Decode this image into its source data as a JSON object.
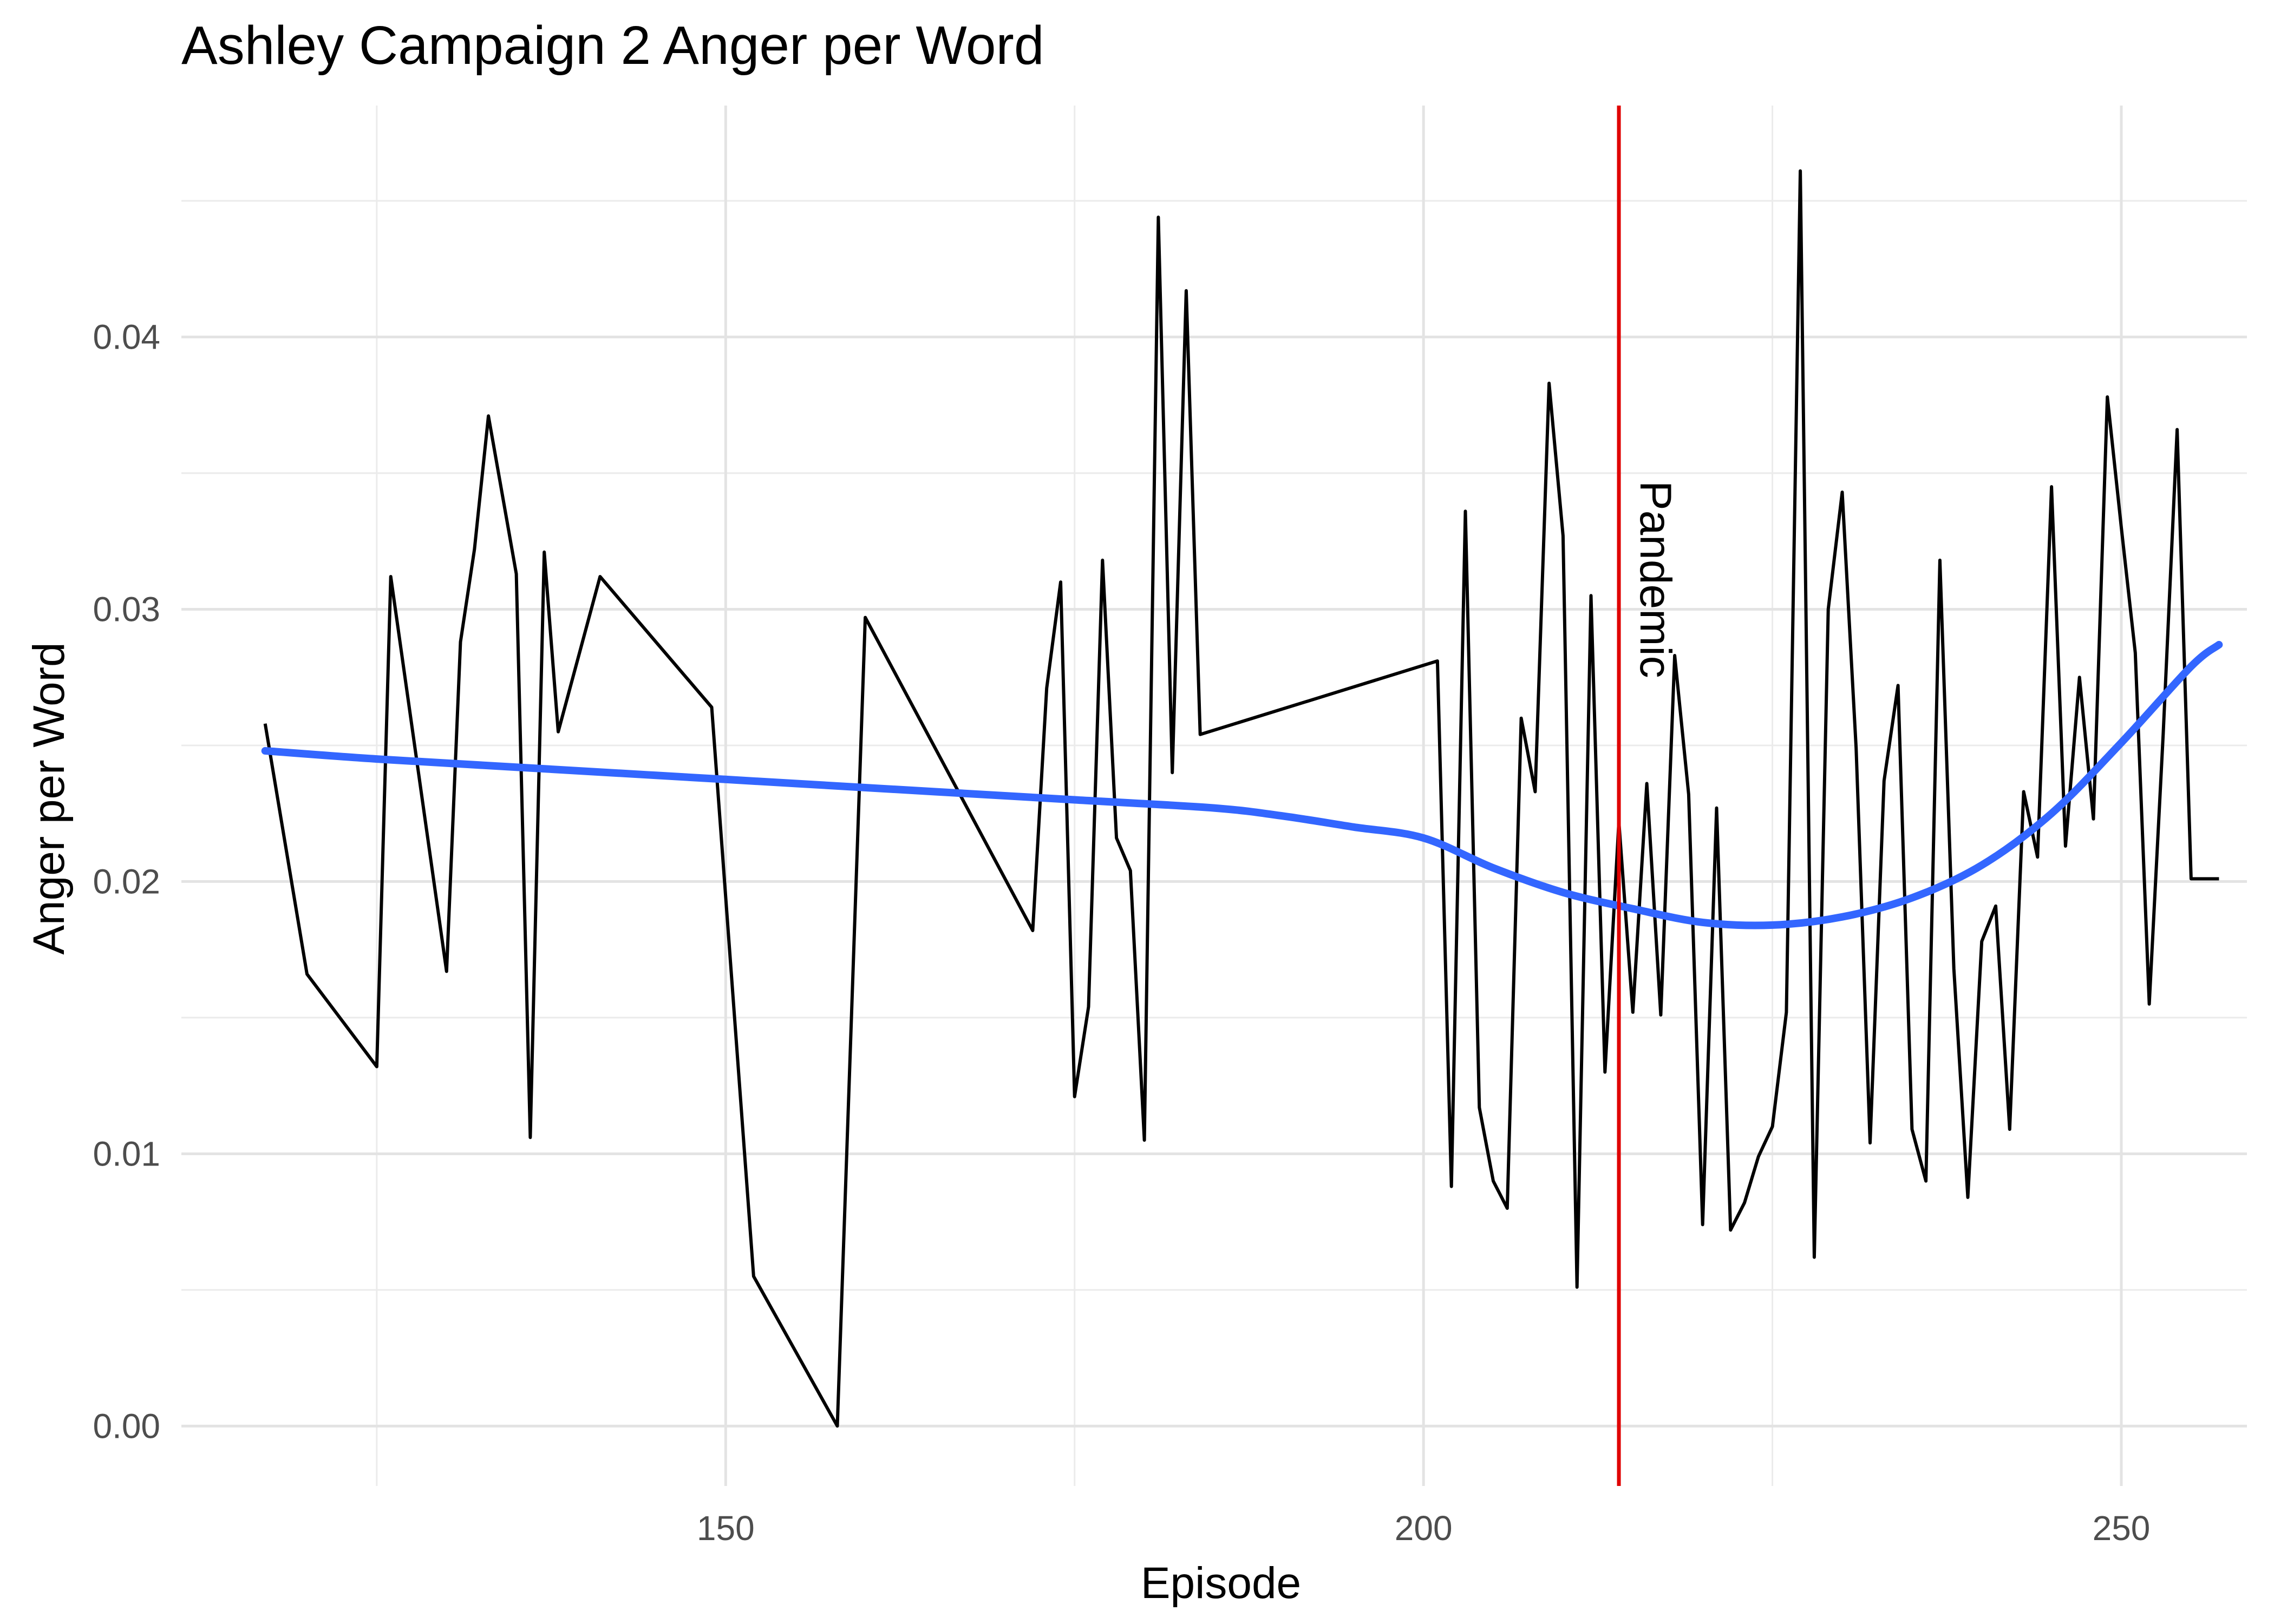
{
  "chart_data": {
    "type": "line",
    "title": "Ashley Campaign 2 Anger per Word",
    "xlabel": "Episode",
    "ylabel": "Anger per Word",
    "xlim": [
      111,
      259
    ],
    "ylim": [
      -0.0022,
      0.0485
    ],
    "x_major_ticks": [
      150,
      200,
      250
    ],
    "x_minor_ticks": [
      125,
      175,
      225
    ],
    "y_major_ticks": [
      0.0,
      0.01,
      0.02,
      0.03,
      0.04
    ],
    "y_minor_ticks": [
      0.005,
      0.015,
      0.025,
      0.035,
      0.045
    ],
    "x_tick_labels": [
      "150",
      "200",
      "250"
    ],
    "y_tick_labels": [
      "0.00",
      "0.01",
      "0.02",
      "0.03",
      "0.04"
    ],
    "grid": true,
    "series": [
      {
        "kind": "line",
        "color": "#000000",
        "x": [
          117,
          120,
          125,
          126,
          130,
          131,
          132,
          133,
          135,
          136,
          137,
          138,
          141,
          149,
          152,
          158,
          160,
          172,
          173,
          174,
          175,
          176,
          177,
          178,
          179,
          180,
          181,
          182,
          183,
          184,
          201,
          202,
          203,
          204,
          205,
          206,
          207,
          208,
          209,
          210,
          211,
          212,
          213,
          214,
          215,
          216,
          217,
          218,
          219,
          220,
          221,
          222,
          223,
          224,
          225,
          226,
          227,
          228,
          229,
          230,
          231,
          232,
          233,
          234,
          235,
          236,
          237,
          238,
          239,
          240,
          241,
          242,
          243,
          244,
          245,
          246,
          247,
          248,
          249,
          250,
          251,
          252,
          253,
          254,
          255,
          256,
          257
        ],
        "y": [
          0.0258,
          0.0166,
          0.0132,
          0.0312,
          0.0167,
          0.0288,
          0.0322,
          0.0371,
          0.0313,
          0.0106,
          0.0321,
          0.0255,
          0.0312,
          0.0264,
          0.0055,
          0.0,
          0.0297,
          0.0182,
          0.0271,
          0.031,
          0.0121,
          0.0154,
          0.0318,
          0.0216,
          0.0204,
          0.0105,
          0.0444,
          0.024,
          0.0417,
          0.0254,
          0.0281,
          0.0088,
          0.0336,
          0.0117,
          0.009,
          0.008,
          0.026,
          0.0233,
          0.0383,
          0.0327,
          0.0051,
          0.0305,
          0.013,
          0.0222,
          0.0152,
          0.0236,
          0.0151,
          0.0283,
          0.0232,
          0.0074,
          0.0227,
          0.0072,
          0.0082,
          0.0099,
          0.011,
          0.0152,
          0.0461,
          0.0062,
          0.03,
          0.0343,
          0.0249,
          0.0104,
          0.0237,
          0.0272,
          0.0109,
          0.009,
          0.0318,
          0.0168,
          0.0084,
          0.0178,
          0.0191,
          0.0109,
          0.0233,
          0.0209,
          0.0345,
          0.0213,
          0.0275,
          0.0223,
          0.0378,
          0.033,
          0.0284,
          0.0155,
          0.0254,
          0.0366,
          0.0201,
          0.0201,
          0.0201
        ]
      },
      {
        "kind": "smooth",
        "color": "#3366FF",
        "x": [
          117,
          125,
          135,
          145,
          155,
          165,
          175,
          185,
          190,
          195,
          200,
          205,
          210,
          215,
          220,
          225,
          230,
          235,
          240,
          245,
          250,
          255,
          257
        ],
        "y": [
          0.0248,
          0.0245,
          0.0242,
          0.0239,
          0.0236,
          0.0233,
          0.023,
          0.0227,
          0.0224,
          0.022,
          0.0216,
          0.0205,
          0.0196,
          0.019,
          0.0185,
          0.0184,
          0.0187,
          0.0194,
          0.0206,
          0.0225,
          0.0251,
          0.0279,
          0.0287
        ]
      }
    ],
    "annotations": [
      {
        "type": "vline",
        "x": 214,
        "color": "#E00000",
        "label": "Pandemic",
        "label_rotation": 90
      }
    ]
  }
}
